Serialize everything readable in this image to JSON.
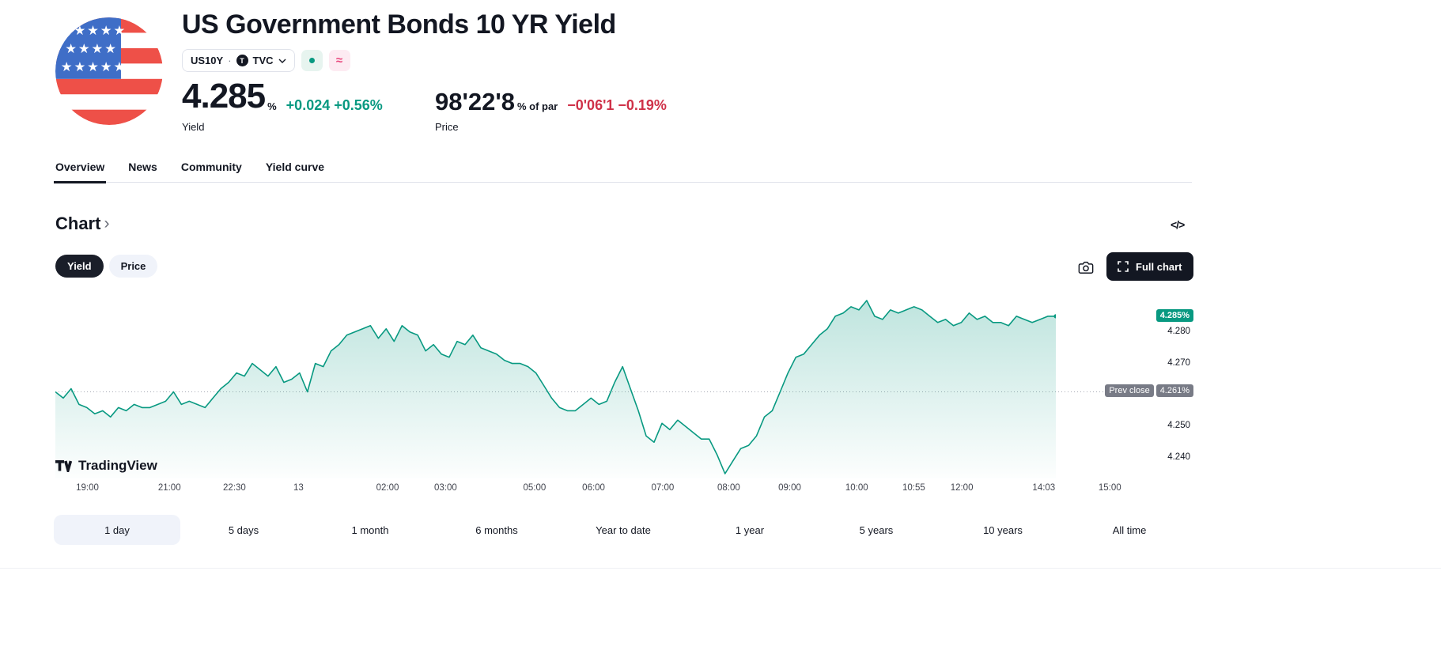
{
  "header": {
    "title": "US Government Bonds 10 YR Yield",
    "symbol": "US10Y",
    "separator": "·",
    "exchange": "TVC",
    "market_status_approx": "≈",
    "yield": {
      "value": "4.285",
      "unit": "%",
      "change": "+0.024 +0.56%",
      "label": "Yield"
    },
    "price": {
      "value": "98'22'8",
      "unit": "% of par",
      "change": "−0'06'1 −0.19%",
      "label": "Price"
    }
  },
  "tabs": [
    {
      "label": "Overview",
      "active": true
    },
    {
      "label": "News",
      "active": false
    },
    {
      "label": "Community",
      "active": false
    },
    {
      "label": "Yield curve",
      "active": false
    }
  ],
  "chart_section": {
    "heading": "Chart",
    "chevron": "›",
    "code_icon": "</>",
    "toggles": [
      {
        "label": "Yield",
        "active": true
      },
      {
        "label": "Price",
        "active": false
      }
    ],
    "full_chart_label": "Full chart",
    "watermark": "TradingView"
  },
  "chart_data": {
    "type": "area",
    "title": "US10Y 1 day yield chart",
    "line_color": "#089981",
    "ylim": [
      4.2335,
      4.2925
    ],
    "current": {
      "label": "4.285%",
      "value": 4.285
    },
    "prev_close": {
      "label": "Prev close",
      "value_label": "4.261%",
      "value": 4.261
    },
    "y_ticks": [
      {
        "label": "4.280",
        "value": 4.28
      },
      {
        "label": "4.270",
        "value": 4.27
      },
      {
        "label": "4.250",
        "value": 4.25
      },
      {
        "label": "4.240",
        "value": 4.24
      }
    ],
    "x_ticks": [
      {
        "label": "19:00",
        "pos": 0.032
      },
      {
        "label": "21:00",
        "pos": 0.114
      },
      {
        "label": "22:30",
        "pos": 0.179
      },
      {
        "label": "13",
        "pos": 0.243
      },
      {
        "label": "02:00",
        "pos": 0.332
      },
      {
        "label": "03:00",
        "pos": 0.39
      },
      {
        "label": "05:00",
        "pos": 0.479
      },
      {
        "label": "06:00",
        "pos": 0.538
      },
      {
        "label": "07:00",
        "pos": 0.607
      },
      {
        "label": "08:00",
        "pos": 0.673
      },
      {
        "label": "09:00",
        "pos": 0.734
      },
      {
        "label": "10:00",
        "pos": 0.801
      },
      {
        "label": "10:55",
        "pos": 0.858
      },
      {
        "label": "12:00",
        "pos": 0.906
      },
      {
        "label": "14:03",
        "pos": 0.988
      },
      {
        "label": "15:00",
        "pos": 1.054
      }
    ],
    "values": [
      4.261,
      4.259,
      4.262,
      4.257,
      4.256,
      4.254,
      4.255,
      4.253,
      4.256,
      4.255,
      4.257,
      4.256,
      4.256,
      4.257,
      4.258,
      4.261,
      4.257,
      4.258,
      4.257,
      4.256,
      4.259,
      4.262,
      4.264,
      4.267,
      4.266,
      4.27,
      4.268,
      4.266,
      4.269,
      4.264,
      4.265,
      4.267,
      4.261,
      4.27,
      4.269,
      4.274,
      4.276,
      4.279,
      4.28,
      4.281,
      4.282,
      4.278,
      4.281,
      4.277,
      4.282,
      4.28,
      4.279,
      4.274,
      4.276,
      4.273,
      4.272,
      4.277,
      4.276,
      4.279,
      4.275,
      4.274,
      4.273,
      4.271,
      4.27,
      4.27,
      4.269,
      4.267,
      4.263,
      4.259,
      4.256,
      4.255,
      4.255,
      4.257,
      4.259,
      4.257,
      4.258,
      4.264,
      4.269,
      4.262,
      4.255,
      4.247,
      4.245,
      4.251,
      4.249,
      4.252,
      4.25,
      4.248,
      4.246,
      4.246,
      4.241,
      4.235,
      4.239,
      4.243,
      4.244,
      4.247,
      4.253,
      4.255,
      4.261,
      4.267,
      4.272,
      4.273,
      4.276,
      4.279,
      4.281,
      4.285,
      4.286,
      4.288,
      4.287,
      4.29,
      4.285,
      4.284,
      4.287,
      4.286,
      4.287,
      4.288,
      4.287,
      4.285,
      4.283,
      4.284,
      4.282,
      4.283,
      4.286,
      4.284,
      4.285,
      4.283,
      4.283,
      4.282,
      4.285,
      4.284,
      4.283,
      4.284,
      4.285,
      4.285
    ]
  },
  "ranges": [
    {
      "label": "1 day",
      "active": true
    },
    {
      "label": "5 days",
      "active": false
    },
    {
      "label": "1 month",
      "active": false
    },
    {
      "label": "6 months",
      "active": false
    },
    {
      "label": "Year to date",
      "active": false
    },
    {
      "label": "1 year",
      "active": false
    },
    {
      "label": "5 years",
      "active": false
    },
    {
      "label": "10 years",
      "active": false
    },
    {
      "label": "All time",
      "active": false
    }
  ],
  "colors": {
    "up": "#089981",
    "down": "#cf3148",
    "text": "#131722",
    "muted": "#787b86",
    "pill_bg": "#f0f3fa",
    "border": "#e0e3eb",
    "badge_current_bg": "#089981",
    "badge_prev_close_bg": "#787b86"
  }
}
